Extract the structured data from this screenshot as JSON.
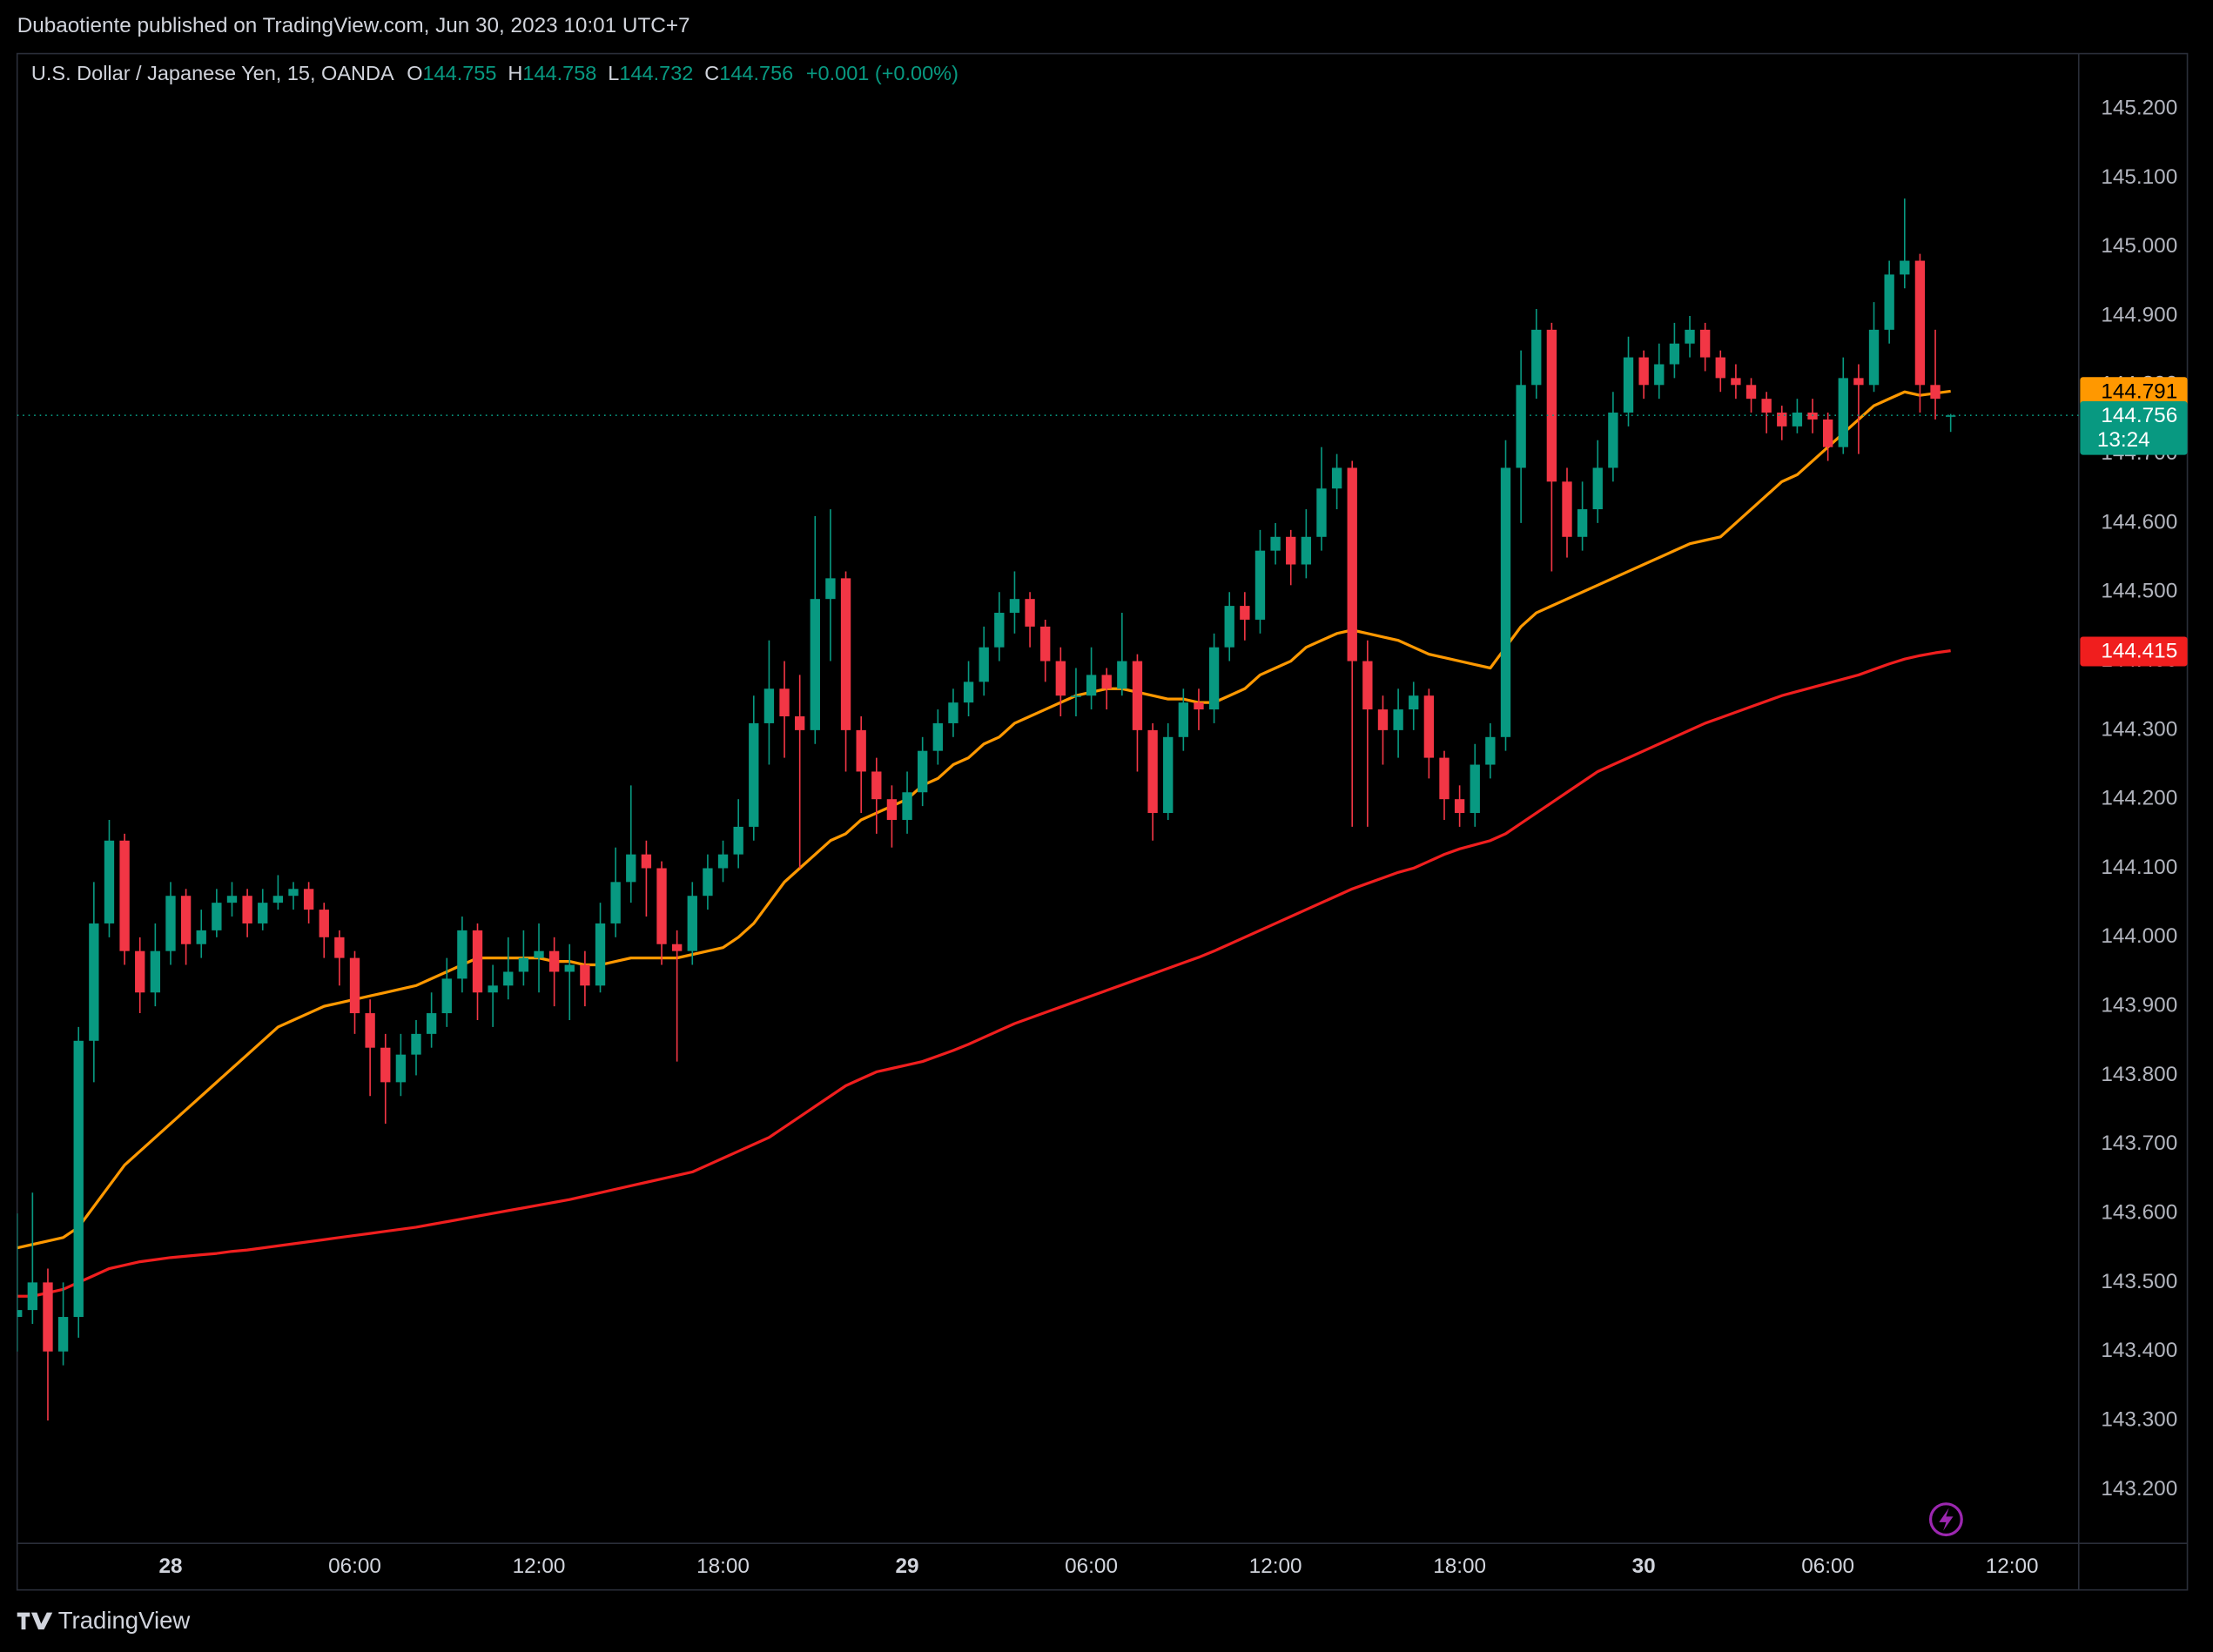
{
  "header": {
    "text": "Dubaotiente published on TradingView.com, Jun 30, 2023 10:01 UTC+7"
  },
  "footer": {
    "brand": "TradingView"
  },
  "chart_data": {
    "type": "candlestick",
    "title": "U.S. Dollar / Japanese Yen, 15, OANDA",
    "legend": {
      "labels": [
        "O",
        "H",
        "L",
        "C"
      ],
      "change": "+0.001 (+0.00%)"
    },
    "countdown": "13:24",
    "up_color": "#089981",
    "down_color": "#f23645",
    "grid": false,
    "categories": [
      null,
      null,
      null,
      null,
      null,
      null,
      null,
      null,
      null,
      null,
      "28",
      null,
      null,
      null,
      null,
      null,
      null,
      null,
      null,
      null,
      null,
      null,
      "06:00",
      null,
      null,
      null,
      null,
      null,
      null,
      null,
      null,
      null,
      null,
      null,
      "12:00",
      null,
      null,
      null,
      null,
      null,
      null,
      null,
      null,
      null,
      null,
      null,
      "18:00",
      null,
      null,
      null,
      null,
      null,
      null,
      null,
      null,
      null,
      null,
      null,
      "29",
      null,
      null,
      null,
      null,
      null,
      null,
      null,
      null,
      null,
      null,
      null,
      "06:00",
      null,
      null,
      null,
      null,
      null,
      null,
      null,
      null,
      null,
      null,
      null,
      "12:00",
      null,
      null,
      null,
      null,
      null,
      null,
      null,
      null,
      null,
      null,
      null,
      "18:00",
      null,
      null,
      null,
      null,
      null,
      null,
      null,
      null,
      null,
      null,
      null,
      "30",
      null,
      null,
      null,
      null,
      null,
      null,
      null,
      null,
      null,
      null,
      null,
      "06:00",
      null,
      null,
      null,
      null,
      null,
      null,
      null,
      null,
      null,
      null,
      null,
      "12:00"
    ],
    "open": [
      143.45,
      143.46,
      143.5,
      143.4,
      143.45,
      143.85,
      144.02,
      144.14,
      143.98,
      143.92,
      143.98,
      144.06,
      143.99,
      144.01,
      144.05,
      144.06,
      144.02,
      144.05,
      144.06,
      144.07,
      144.04,
      144.0,
      143.97,
      143.89,
      143.84,
      143.79,
      143.83,
      143.86,
      143.89,
      143.94,
      144.01,
      143.92,
      143.93,
      143.95,
      143.97,
      143.98,
      143.95,
      143.96,
      143.93,
      144.02,
      144.08,
      144.12,
      144.1,
      143.99,
      143.98,
      144.06,
      144.1,
      144.12,
      144.16,
      144.31,
      144.36,
      144.32,
      144.3,
      144.49,
      144.52,
      144.3,
      144.24,
      144.2,
      144.17,
      144.21,
      144.27,
      144.31,
      144.34,
      144.37,
      144.42,
      144.47,
      144.49,
      144.45,
      144.4,
      144.35,
      144.35,
      144.38,
      144.36,
      144.4,
      144.3,
      144.18,
      144.29,
      144.34,
      144.33,
      144.42,
      144.48,
      144.46,
      144.56,
      144.58,
      144.54,
      144.58,
      144.65,
      144.68,
      144.4,
      144.33,
      144.3,
      144.33,
      144.35,
      144.26,
      144.2,
      144.18,
      144.25,
      144.29,
      144.68,
      144.8,
      144.88,
      144.66,
      144.58,
      144.62,
      144.68,
      144.76,
      144.84,
      144.8,
      144.83,
      144.86,
      144.88,
      144.84,
      144.81,
      144.8,
      144.78,
      144.76,
      144.74,
      144.76,
      144.75,
      144.71,
      144.81,
      144.8,
      144.88,
      144.96,
      144.98,
      144.8,
      144.755,
      null,
      null,
      null,
      null
    ],
    "high": [
      143.6,
      143.63,
      143.52,
      143.5,
      143.87,
      144.08,
      144.17,
      144.15,
      144.0,
      144.02,
      144.08,
      144.07,
      144.04,
      144.07,
      144.08,
      144.07,
      144.07,
      144.09,
      144.08,
      144.08,
      144.05,
      144.01,
      143.98,
      143.91,
      143.86,
      143.86,
      143.88,
      143.92,
      143.97,
      144.03,
      144.02,
      143.96,
      144.0,
      144.01,
      144.02,
      144.0,
      143.99,
      143.98,
      144.05,
      144.13,
      144.22,
      144.14,
      144.11,
      144.01,
      144.08,
      144.12,
      144.14,
      144.2,
      144.35,
      144.43,
      144.4,
      144.38,
      144.61,
      144.62,
      144.53,
      144.32,
      144.26,
      144.22,
      144.24,
      144.29,
      144.33,
      144.36,
      144.4,
      144.45,
      144.5,
      144.53,
      144.5,
      144.46,
      144.42,
      144.39,
      144.42,
      144.39,
      144.47,
      144.41,
      144.31,
      144.31,
      144.36,
      144.36,
      144.44,
      144.5,
      144.5,
      144.59,
      144.6,
      144.59,
      144.62,
      144.71,
      144.7,
      144.69,
      144.43,
      144.35,
      144.36,
      144.37,
      144.36,
      144.27,
      144.22,
      144.28,
      144.31,
      144.72,
      144.85,
      144.91,
      144.89,
      144.68,
      144.66,
      144.72,
      144.79,
      144.87,
      144.85,
      144.86,
      144.89,
      144.9,
      144.89,
      144.85,
      144.83,
      144.81,
      144.79,
      144.77,
      144.78,
      144.78,
      144.76,
      144.84,
      144.83,
      144.92,
      144.98,
      145.07,
      144.99,
      144.88,
      144.758,
      null,
      null,
      null,
      null
    ],
    "low": [
      143.4,
      143.44,
      143.3,
      143.38,
      143.42,
      143.79,
      144.0,
      143.96,
      143.89,
      143.9,
      143.96,
      143.96,
      143.97,
      144.0,
      144.03,
      144.0,
      144.01,
      144.04,
      144.04,
      144.02,
      143.97,
      143.93,
      143.86,
      143.77,
      143.73,
      143.77,
      143.8,
      143.84,
      143.87,
      143.92,
      143.88,
      143.87,
      143.91,
      143.93,
      143.92,
      143.9,
      143.88,
      143.9,
      143.92,
      144.0,
      144.05,
      144.03,
      143.96,
      143.82,
      143.96,
      144.04,
      144.08,
      144.1,
      144.14,
      144.25,
      144.26,
      144.1,
      144.28,
      144.4,
      144.24,
      144.18,
      144.15,
      144.13,
      144.15,
      144.19,
      144.25,
      144.29,
      144.32,
      144.35,
      144.4,
      144.44,
      144.42,
      144.37,
      144.32,
      144.32,
      144.33,
      144.33,
      144.35,
      144.24,
      144.14,
      144.17,
      144.27,
      144.3,
      144.31,
      144.4,
      144.43,
      144.44,
      144.54,
      144.51,
      144.52,
      144.56,
      144.62,
      144.16,
      144.16,
      144.25,
      144.26,
      144.3,
      144.23,
      144.17,
      144.16,
      144.16,
      144.23,
      144.27,
      144.6,
      144.78,
      144.53,
      144.55,
      144.56,
      144.6,
      144.66,
      144.74,
      144.78,
      144.78,
      144.81,
      144.84,
      144.82,
      144.79,
      144.78,
      144.76,
      144.73,
      144.72,
      144.73,
      144.73,
      144.69,
      144.7,
      144.7,
      144.79,
      144.86,
      144.94,
      144.76,
      144.75,
      144.732,
      null,
      null,
      null,
      null
    ],
    "close": [
      143.46,
      143.5,
      143.4,
      143.45,
      143.85,
      144.02,
      144.14,
      143.98,
      143.92,
      143.98,
      144.06,
      143.99,
      144.01,
      144.05,
      144.06,
      144.02,
      144.05,
      144.06,
      144.07,
      144.04,
      144.0,
      143.97,
      143.89,
      143.84,
      143.79,
      143.83,
      143.86,
      143.89,
      143.94,
      144.01,
      143.92,
      143.93,
      143.95,
      143.97,
      143.98,
      143.95,
      143.96,
      143.93,
      144.02,
      144.08,
      144.12,
      144.1,
      143.99,
      143.98,
      144.06,
      144.1,
      144.12,
      144.16,
      144.31,
      144.36,
      144.32,
      144.3,
      144.49,
      144.52,
      144.3,
      144.24,
      144.2,
      144.17,
      144.21,
      144.27,
      144.31,
      144.34,
      144.37,
      144.42,
      144.47,
      144.49,
      144.45,
      144.4,
      144.35,
      144.35,
      144.38,
      144.36,
      144.4,
      144.3,
      144.18,
      144.29,
      144.34,
      144.33,
      144.42,
      144.48,
      144.46,
      144.56,
      144.58,
      144.54,
      144.58,
      144.65,
      144.68,
      144.4,
      144.33,
      144.3,
      144.33,
      144.35,
      144.26,
      144.2,
      144.18,
      144.25,
      144.29,
      144.68,
      144.8,
      144.88,
      144.66,
      144.58,
      144.62,
      144.68,
      144.76,
      144.84,
      144.8,
      144.83,
      144.86,
      144.88,
      144.84,
      144.81,
      144.8,
      144.78,
      144.76,
      144.74,
      144.76,
      144.75,
      144.71,
      144.81,
      144.8,
      144.88,
      144.96,
      144.98,
      144.8,
      144.78,
      144.756,
      null,
      null,
      null,
      null
    ],
    "series": [
      {
        "color": "#ff9800",
        "values": [
          143.55,
          143.555,
          143.56,
          143.565,
          143.58,
          143.61,
          143.64,
          143.67,
          143.69,
          143.71,
          143.73,
          143.75,
          143.77,
          143.79,
          143.81,
          143.83,
          143.85,
          143.87,
          143.88,
          143.89,
          143.9,
          143.905,
          143.91,
          143.915,
          143.92,
          143.925,
          143.93,
          143.94,
          143.95,
          143.96,
          143.97,
          143.97,
          143.97,
          143.97,
          143.97,
          143.965,
          143.965,
          143.96,
          143.96,
          143.965,
          143.97,
          143.97,
          143.97,
          143.97,
          143.975,
          143.98,
          143.985,
          144.0,
          144.02,
          144.05,
          144.08,
          144.1,
          144.12,
          144.14,
          144.15,
          144.17,
          144.18,
          144.19,
          144.2,
          144.22,
          144.23,
          144.25,
          144.26,
          144.28,
          144.29,
          144.31,
          144.32,
          144.33,
          144.34,
          144.35,
          144.355,
          144.36,
          144.36,
          144.355,
          144.35,
          144.345,
          144.345,
          144.34,
          144.34,
          144.35,
          144.36,
          144.38,
          144.39,
          144.4,
          144.42,
          144.43,
          144.44,
          144.445,
          144.44,
          144.435,
          144.43,
          144.42,
          144.41,
          144.405,
          144.4,
          144.395,
          144.39,
          144.42,
          144.45,
          144.47,
          144.48,
          144.49,
          144.5,
          144.51,
          144.52,
          144.53,
          144.54,
          144.55,
          144.56,
          144.57,
          144.575,
          144.58,
          144.6,
          144.62,
          144.64,
          144.66,
          144.67,
          144.69,
          144.71,
          144.73,
          144.75,
          144.77,
          144.78,
          144.79,
          144.785,
          144.788,
          144.791,
          null,
          null,
          null,
          null
        ]
      },
      {
        "color": "#f01e1e",
        "values": [
          143.48,
          143.48,
          143.485,
          143.49,
          143.5,
          143.51,
          143.52,
          143.525,
          143.53,
          143.533,
          143.536,
          143.538,
          143.54,
          143.542,
          143.545,
          143.547,
          143.55,
          143.553,
          143.556,
          143.559,
          143.562,
          143.565,
          143.568,
          143.571,
          143.574,
          143.577,
          143.58,
          143.584,
          143.588,
          143.592,
          143.596,
          143.6,
          143.604,
          143.608,
          143.612,
          143.616,
          143.62,
          143.625,
          143.63,
          143.635,
          143.64,
          143.645,
          143.65,
          143.655,
          143.66,
          143.67,
          143.68,
          143.69,
          143.7,
          143.71,
          143.725,
          143.74,
          143.755,
          143.77,
          143.785,
          143.795,
          143.805,
          143.81,
          143.815,
          143.82,
          143.828,
          143.836,
          143.845,
          143.855,
          143.865,
          143.875,
          143.883,
          143.891,
          143.899,
          143.907,
          143.915,
          143.923,
          143.931,
          143.939,
          143.947,
          143.955,
          143.963,
          143.971,
          143.98,
          143.99,
          144.0,
          144.01,
          144.02,
          144.03,
          144.04,
          144.05,
          144.06,
          144.07,
          144.078,
          144.086,
          144.094,
          144.1,
          144.11,
          144.12,
          144.128,
          144.134,
          144.14,
          144.15,
          144.165,
          144.18,
          144.195,
          144.21,
          144.225,
          144.24,
          144.25,
          144.26,
          144.27,
          144.28,
          144.29,
          144.3,
          144.31,
          144.318,
          144.326,
          144.334,
          144.342,
          144.35,
          144.356,
          144.362,
          144.368,
          144.374,
          144.38,
          144.388,
          144.396,
          144.403,
          144.408,
          144.412,
          144.415,
          null,
          null,
          null,
          null
        ]
      }
    ],
    "ylim": [
      143.122,
      145.28
    ],
    "yticks": [
      {
        "value": 143.2,
        "label": "143.200"
      },
      {
        "value": 143.3,
        "label": "143.300"
      },
      {
        "value": 143.4,
        "label": "143.400"
      },
      {
        "value": 143.5,
        "label": "143.500"
      },
      {
        "value": 143.6,
        "label": "143.600"
      },
      {
        "value": 143.7,
        "label": "143.700"
      },
      {
        "value": 143.8,
        "label": "143.800"
      },
      {
        "value": 143.9,
        "label": "143.900"
      },
      {
        "value": 144.0,
        "label": "144.000"
      },
      {
        "value": 144.1,
        "label": "144.100"
      },
      {
        "value": 144.2,
        "label": "144.200"
      },
      {
        "value": 144.3,
        "label": "144.300"
      },
      {
        "value": 144.4,
        "label": "144.400"
      },
      {
        "value": 144.5,
        "label": "144.500"
      },
      {
        "value": 144.6,
        "label": "144.600"
      },
      {
        "value": 144.7,
        "label": "144.700"
      },
      {
        "value": 144.8,
        "label": "144.800"
      },
      {
        "value": 144.9,
        "label": "144.900"
      },
      {
        "value": 145.0,
        "label": "145.000"
      },
      {
        "value": 145.1,
        "label": "145.100"
      },
      {
        "value": 145.2,
        "label": "145.200"
      }
    ]
  }
}
